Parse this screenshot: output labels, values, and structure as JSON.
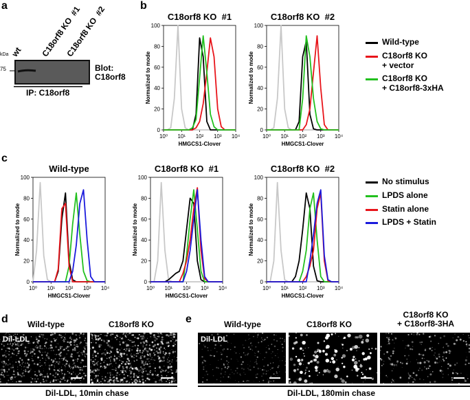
{
  "labels": {
    "a": "a",
    "b": "b",
    "c": "c",
    "d": "d",
    "e": "e"
  },
  "blot": {
    "kda": "kDa",
    "marker": "75",
    "lanes": [
      "wt",
      "C18orf8 KO  #1",
      "C18orf8 KO  #2"
    ],
    "blot_label": "Blot:\nC18orf8",
    "ip": "IP: C18orf8"
  },
  "panel_d": {
    "columns": [
      "Wild-type",
      "C18orf8 KO"
    ],
    "stain": "Dil-LDL",
    "caption": "Dil-LDL, 10min chase"
  },
  "panel_e": {
    "columns": [
      "Wild-type",
      "C18orf8 KO",
      "C18orf8 KO\n+ C18orf8-3HA"
    ],
    "stain": "Dil-LDL",
    "caption": "Dil-LDL, 180min chase"
  },
  "chart_data": [
    {
      "type": "line",
      "title": "C18orf8 KO  #1",
      "xlabel": "HMGCS1-Clover",
      "ylabel": "Normalized to mode",
      "log_x": true,
      "x": [
        1,
        1.58,
        2.51,
        3.98,
        6.31,
        10,
        15.8,
        25.1,
        39.8,
        63.1,
        100,
        158,
        251,
        398,
        631,
        1000,
        1585,
        2512,
        3981,
        6310,
        10000
      ],
      "xlim": [
        1,
        10000
      ],
      "ylim": [
        0,
        100
      ],
      "xticks": [
        {
          "value": 1,
          "label": "10⁰"
        },
        {
          "value": 10,
          "label": "10¹"
        },
        {
          "value": 100,
          "label": "10²"
        },
        {
          "value": 1000,
          "label": "10³"
        },
        {
          "value": 10000,
          "label": "10⁴"
        }
      ],
      "yticks": [
        0,
        20,
        40,
        60,
        80,
        100
      ],
      "series": [
        {
          "color": "#c8c8c8",
          "values": [
            0,
            0,
            2,
            30,
            100,
            20,
            2,
            0,
            0,
            0,
            0,
            0,
            0,
            0,
            0,
            0,
            0,
            0,
            0,
            0,
            0
          ]
        },
        {
          "name": "Wild-type",
          "color": "#000000",
          "values": [
            0,
            0,
            0,
            0,
            0,
            0,
            0,
            0,
            0,
            15,
            88,
            70,
            8,
            0,
            0,
            0,
            0,
            0,
            0,
            0,
            0
          ]
        },
        {
          "name": "C18orf8 KO\n+ vector",
          "color": "#e8141a",
          "values": [
            0,
            0,
            0,
            0,
            0,
            0,
            0,
            0,
            0,
            2,
            8,
            25,
            55,
            88,
            70,
            20,
            3,
            0,
            0,
            0,
            0
          ]
        },
        {
          "name": "C18orf8 KO\n+ C18orf8-3xHA",
          "color": "#22c01e",
          "values": [
            0,
            0,
            0,
            0,
            0,
            0,
            0,
            0,
            2,
            10,
            50,
            90,
            55,
            15,
            3,
            0,
            0,
            0,
            0,
            0,
            0
          ]
        }
      ]
    },
    {
      "type": "line",
      "title": "C18orf8 KO  #2",
      "xlabel": "HMGCS1-Clover",
      "ylabel": "Normalized to mode",
      "log_x": true,
      "legend": "right",
      "x": [
        1,
        1.58,
        2.51,
        3.98,
        6.31,
        10,
        15.8,
        25.1,
        39.8,
        63.1,
        100,
        158,
        251,
        398,
        631,
        1000,
        1585,
        2512,
        3981,
        6310,
        10000
      ],
      "xlim": [
        1,
        10000
      ],
      "ylim": [
        0,
        100
      ],
      "xticks": [
        {
          "value": 1,
          "label": "10⁰"
        },
        {
          "value": 10,
          "label": "10¹"
        },
        {
          "value": 100,
          "label": "10²"
        },
        {
          "value": 1000,
          "label": "10³"
        },
        {
          "value": 10000,
          "label": "10⁴"
        }
      ],
      "yticks": [
        0,
        20,
        40,
        60,
        80,
        100
      ],
      "series": [
        {
          "color": "#c8c8c8",
          "values": [
            0,
            0,
            2,
            30,
            100,
            20,
            2,
            0,
            0,
            0,
            0,
            0,
            0,
            0,
            0,
            0,
            0,
            0,
            0,
            0,
            0
          ]
        },
        {
          "name": "Wild-type",
          "color": "#000000",
          "values": [
            0,
            0,
            0,
            0,
            0,
            0,
            0,
            0,
            0,
            8,
            70,
            85,
            15,
            1,
            0,
            0,
            0,
            0,
            0,
            0,
            0
          ]
        },
        {
          "name": "C18orf8 KO\n+ vector",
          "color": "#e8141a",
          "values": [
            0,
            0,
            0,
            0,
            0,
            0,
            0,
            0,
            0,
            0,
            0,
            5,
            20,
            55,
            90,
            40,
            5,
            0,
            0,
            0,
            0
          ]
        },
        {
          "name": "C18orf8 KO\n+ C18orf8-3xHA",
          "color": "#22c01e",
          "values": [
            0,
            0,
            0,
            0,
            0,
            0,
            0,
            0,
            0,
            0,
            30,
            90,
            70,
            30,
            8,
            1,
            0,
            0,
            0,
            0,
            0
          ]
        }
      ]
    },
    {
      "type": "line",
      "title": "Wild-type",
      "xlabel": "HMGCS1-Clover",
      "ylabel": "Normalized to mode",
      "log_x": true,
      "x": [
        1,
        1.58,
        2.51,
        3.98,
        6.31,
        10,
        15.8,
        25.1,
        39.8,
        63.1,
        100,
        158,
        251,
        398,
        631,
        1000,
        1585,
        2512,
        3981,
        6310,
        10000
      ],
      "xlim": [
        1,
        10000
      ],
      "ylim": [
        0,
        100
      ],
      "xticks": [
        {
          "value": 1,
          "label": "10⁰"
        },
        {
          "value": 10,
          "label": "10¹"
        },
        {
          "value": 100,
          "label": "10²"
        },
        {
          "value": 1000,
          "label": "10³"
        },
        {
          "value": 10000,
          "label": "10⁴"
        }
      ],
      "yticks": [
        0,
        20,
        40,
        60,
        80,
        100
      ],
      "series": [
        {
          "color": "#c8c8c8",
          "values": [
            0,
            30,
            95,
            25,
            2,
            0,
            0,
            0,
            0,
            0,
            0,
            0,
            0,
            0,
            0,
            0,
            0,
            0,
            0,
            0,
            0
          ]
        },
        {
          "name": "No stimulus",
          "color": "#000000",
          "values": [
            0,
            0,
            0,
            0,
            0,
            0,
            0,
            10,
            60,
            85,
            20,
            2,
            0,
            0,
            0,
            0,
            0,
            0,
            0,
            0,
            0
          ]
        },
        {
          "name": "LPDS alone",
          "color": "#22c01e",
          "values": [
            0,
            0,
            0,
            0,
            0,
            0,
            0,
            0,
            0,
            0,
            15,
            55,
            85,
            45,
            10,
            1,
            0,
            0,
            0,
            0,
            0
          ]
        },
        {
          "name": "Statin alone",
          "color": "#e8141a",
          "values": [
            0,
            0,
            0,
            0,
            0,
            0,
            0,
            12,
            70,
            75,
            15,
            0,
            0,
            0,
            0,
            0,
            0,
            0,
            0,
            0,
            0
          ]
        },
        {
          "name": "LPDS + Statin",
          "color": "#1a1adc",
          "values": [
            0,
            0,
            0,
            0,
            0,
            0,
            0,
            0,
            0,
            0,
            0,
            10,
            35,
            75,
            88,
            40,
            5,
            0,
            0,
            0,
            0
          ]
        }
      ]
    },
    {
      "type": "line",
      "title": "C18orf8 KO  #1",
      "xlabel": "HMGCS1-Clover",
      "ylabel": "Normalized to mode",
      "log_x": true,
      "x": [
        1,
        1.58,
        2.51,
        3.98,
        6.31,
        10,
        15.8,
        25.1,
        39.8,
        63.1,
        100,
        158,
        251,
        398,
        631,
        1000,
        1585,
        2512,
        3981,
        6310,
        10000
      ],
      "xlim": [
        1,
        10000
      ],
      "ylim": [
        0,
        100
      ],
      "xticks": [
        {
          "value": 1,
          "label": "10⁰"
        },
        {
          "value": 10,
          "label": "10¹"
        },
        {
          "value": 100,
          "label": "10²"
        },
        {
          "value": 1000,
          "label": "10³"
        },
        {
          "value": 10000,
          "label": "10⁴"
        }
      ],
      "yticks": [
        0,
        20,
        40,
        60,
        80,
        100
      ],
      "series": [
        {
          "color": "#c8c8c8",
          "values": [
            0,
            0,
            20,
            95,
            30,
            2,
            0,
            0,
            0,
            0,
            0,
            0,
            0,
            0,
            0,
            0,
            0,
            0,
            0,
            0,
            0
          ]
        },
        {
          "name": "No stimulus",
          "color": "#000000",
          "values": [
            0,
            0,
            0,
            0,
            0,
            2,
            5,
            8,
            10,
            20,
            50,
            80,
            75,
            20,
            2,
            0,
            0,
            0,
            0,
            0,
            0
          ]
        },
        {
          "name": "LPDS alone",
          "color": "#22c01e",
          "values": [
            0,
            0,
            0,
            0,
            0,
            0,
            0,
            0,
            0,
            0,
            25,
            60,
            88,
            50,
            10,
            0,
            0,
            0,
            0,
            0,
            0
          ]
        },
        {
          "name": "Statin alone",
          "color": "#e8141a",
          "values": [
            0,
            0,
            0,
            0,
            0,
            0,
            0,
            0,
            0,
            8,
            20,
            40,
            70,
            90,
            30,
            3,
            0,
            0,
            0,
            0,
            0
          ]
        },
        {
          "name": "LPDS + Statin",
          "color": "#1a1adc",
          "values": [
            0,
            0,
            0,
            0,
            0,
            0,
            0,
            0,
            0,
            0,
            10,
            30,
            60,
            88,
            40,
            5,
            0,
            0,
            0,
            0,
            0
          ]
        }
      ]
    },
    {
      "type": "line",
      "title": "C18orf8 KO  #2",
      "xlabel": "HMGCS1-Clover",
      "ylabel": "Normalized to mode",
      "log_x": true,
      "legend": "right",
      "x": [
        1,
        1.58,
        2.51,
        3.98,
        6.31,
        10,
        15.8,
        25.1,
        39.8,
        63.1,
        100,
        158,
        251,
        398,
        631,
        1000,
        1585,
        2512,
        3981,
        6310,
        10000
      ],
      "xlim": [
        1,
        10000
      ],
      "ylim": [
        0,
        100
      ],
      "xticks": [
        {
          "value": 1,
          "label": "10⁰"
        },
        {
          "value": 10,
          "label": "10¹"
        },
        {
          "value": 100,
          "label": "10²"
        },
        {
          "value": 1000,
          "label": "10³"
        },
        {
          "value": 10000,
          "label": "10⁴"
        }
      ],
      "yticks": [
        0,
        20,
        40,
        60,
        80,
        100
      ],
      "series": [
        {
          "color": "#c8c8c8",
          "values": [
            0,
            0,
            20,
            95,
            30,
            2,
            0,
            0,
            0,
            0,
            0,
            0,
            0,
            0,
            0,
            0,
            0,
            0,
            0,
            0,
            0
          ]
        },
        {
          "name": "No stimulus",
          "color": "#000000",
          "values": [
            0,
            0,
            0,
            0,
            0,
            0,
            0,
            0,
            5,
            20,
            50,
            85,
            70,
            15,
            1,
            0,
            0,
            0,
            0,
            0,
            0
          ]
        },
        {
          "name": "LPDS alone",
          "color": "#22c01e",
          "values": [
            0,
            0,
            0,
            0,
            0,
            0,
            0,
            0,
            0,
            0,
            10,
            30,
            70,
            85,
            40,
            5,
            0,
            0,
            0,
            0,
            0
          ]
        },
        {
          "name": "Statin alone",
          "color": "#e8141a",
          "values": [
            0,
            0,
            0,
            0,
            0,
            0,
            0,
            0,
            0,
            0,
            0,
            5,
            15,
            30,
            70,
            85,
            20,
            1,
            0,
            0,
            0
          ]
        },
        {
          "name": "LPDS + Statin",
          "color": "#1a1adc",
          "values": [
            0,
            0,
            0,
            0,
            0,
            0,
            0,
            0,
            0,
            0,
            0,
            0,
            20,
            45,
            75,
            88,
            25,
            2,
            0,
            0,
            0
          ]
        }
      ]
    }
  ]
}
